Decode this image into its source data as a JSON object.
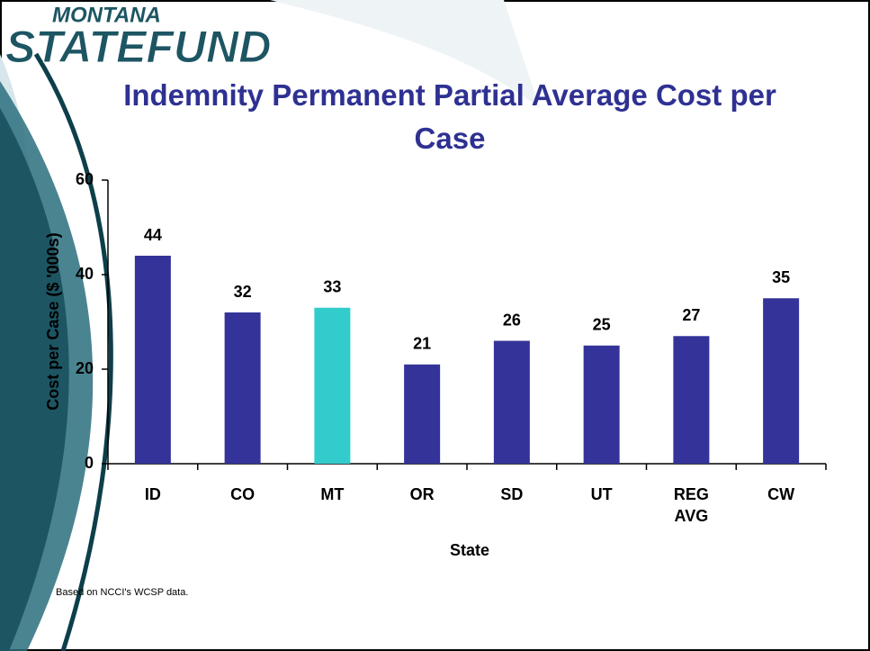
{
  "logo": {
    "top": "MONTANA",
    "bottom": "STATEFUND"
  },
  "note": "Based on NCCI's WCSP data.",
  "chart_data": {
    "type": "bar",
    "title": "Indemnity Permanent Partial Average Cost per Case",
    "x_label": "State",
    "y_label": "Cost per Case ($ '000s)",
    "categories": [
      "ID",
      "CO",
      "MT",
      "OR",
      "SD",
      "UT",
      "REG AVG",
      "CW"
    ],
    "values": [
      44,
      32,
      33,
      21,
      26,
      25,
      27,
      35
    ],
    "colors": [
      "#333399",
      "#333399",
      "#33cccc",
      "#333399",
      "#333399",
      "#333399",
      "#333399",
      "#333399"
    ],
    "ylim": [
      0,
      60
    ],
    "yticks": [
      0,
      20,
      40,
      60
    ],
    "grid": false
  }
}
